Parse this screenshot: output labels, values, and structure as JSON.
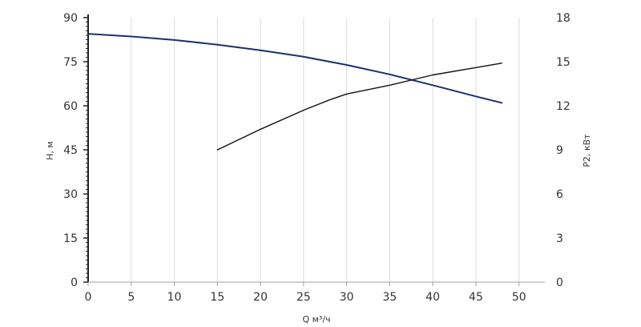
{
  "chart_data": {
    "type": "line",
    "xlabel": "Q м³/ч",
    "ylabel_left": "H, м",
    "ylabel_right": "P2, кВт",
    "xlim": [
      0,
      53
    ],
    "ylim_left": [
      0,
      90
    ],
    "ylim_right": [
      0,
      18
    ],
    "x_ticks": [
      0,
      5,
      10,
      15,
      20,
      25,
      30,
      35,
      40,
      45,
      50
    ],
    "y_ticks_left": [
      0,
      15,
      30,
      45,
      60,
      75,
      90
    ],
    "y_ticks_right": [
      0,
      3,
      6,
      9,
      12,
      15,
      18
    ],
    "grid": "vertical",
    "series": [
      {
        "axis": "left",
        "color": "#1f2f6b",
        "x": [
          0,
          5,
          10,
          15,
          20,
          25,
          30,
          35,
          40,
          45,
          48
        ],
        "y": [
          84.5,
          83.6,
          82.4,
          80.8,
          78.9,
          76.7,
          73.9,
          70.7,
          67.0,
          63.2,
          61.0
        ]
      },
      {
        "axis": "right",
        "color": "#111111",
        "x": [
          15,
          20,
          25,
          28,
          30,
          35,
          40,
          45,
          48
        ],
        "y": [
          9.0,
          10.4,
          11.7,
          12.4,
          12.8,
          13.4,
          14.1,
          14.6,
          14.9
        ]
      }
    ]
  }
}
